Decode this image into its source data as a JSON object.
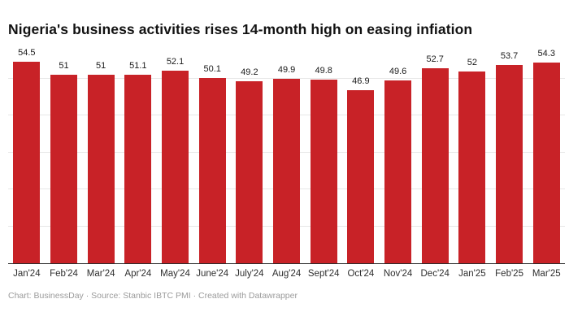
{
  "title": "Nigeria's business activities rises 14-month high on easing infiation",
  "footer": "Chart: BusinessDay · Source: Stanbic IBTC PMI · Created with Datawrapper",
  "chart_data": {
    "type": "bar",
    "title": "Nigeria's business activities rises 14-month high on easing infiation",
    "categories": [
      "Jan'24",
      "Feb'24",
      "Mar'24",
      "Apr'24",
      "May'24",
      "June'24",
      "July'24",
      "Aug'24",
      "Sept'24",
      "Oct'24",
      "Nov'24",
      "Dec'24",
      "Jan'25",
      "Feb'25",
      "Mar'25"
    ],
    "values": [
      54.5,
      51,
      51,
      51.1,
      52.1,
      50.1,
      49.2,
      49.9,
      49.8,
      46.9,
      49.6,
      52.7,
      52,
      53.7,
      54.3
    ],
    "value_labels": [
      "54.5",
      "51",
      "51",
      "51.1",
      "52.1",
      "50.1",
      "49.2",
      "49.9",
      "49.8",
      "46.9",
      "49.6",
      "52.7",
      "52",
      "53.7",
      "54.3"
    ],
    "xlabel": "",
    "ylabel": "",
    "ylim": [
      0,
      55
    ],
    "gridlines": [
      10,
      20,
      30,
      40,
      50
    ],
    "grid_visible": true,
    "legend_position": "none",
    "bar_color": "#c82227",
    "source_note": "Chart: BusinessDay · Source: Stanbic IBTC PMI · Created with Datawrapper"
  }
}
